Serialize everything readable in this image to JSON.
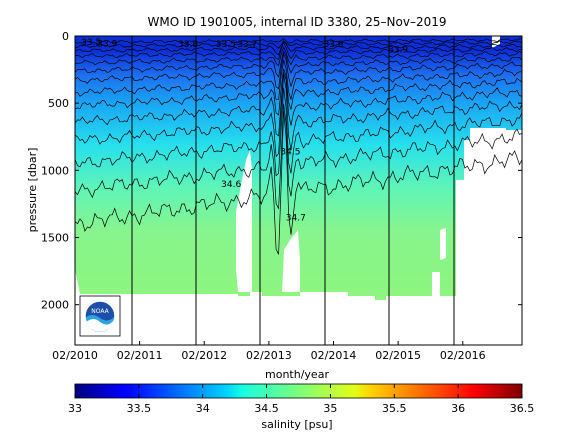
{
  "chart_data": {
    "type": "heatmap",
    "title": "WMO ID 1901005, internal ID 3380, 25–Nov–2019",
    "xlabel": "month/year",
    "ylabel": "pressure [dbar]",
    "x_ticks": [
      "02/2010",
      "02/2011",
      "02/2012",
      "02/2013",
      "02/2014",
      "02/2015",
      "02/2016"
    ],
    "x_range": [
      "02/2010",
      "12/2016"
    ],
    "y_ticks": [
      0,
      500,
      1000,
      1500,
      2000
    ],
    "ylim": [
      0,
      2300
    ],
    "y_reversed": true,
    "colorbar": {
      "label": "salinity [psu]",
      "ticks": [
        "33",
        "33.5",
        "34",
        "34.5",
        "35",
        "35.5",
        "36",
        "36.5"
      ],
      "range": [
        33,
        36.5
      ],
      "colormap": "jet"
    },
    "contour_labels": [
      {
        "text": "33.5",
        "x": "05/2010",
        "y": 45
      },
      {
        "text": "33.9",
        "x": "08/2010",
        "y": 55
      },
      {
        "text": "33.8",
        "x": "11/2011",
        "y": 60
      },
      {
        "text": "33.5",
        "x": "06/2012",
        "y": 60
      },
      {
        "text": "33.7",
        "x": "10/2012",
        "y": 60
      },
      {
        "text": "33.6",
        "x": "02/2014",
        "y": 60
      },
      {
        "text": "33.9",
        "x": "02/2015",
        "y": 100
      },
      {
        "text": "34.5",
        "x": "06/2013",
        "y": 860
      },
      {
        "text": "34.6",
        "x": "07/2012",
        "y": 1100
      },
      {
        "text": "34.7",
        "x": "07/2013",
        "y": 1350
      }
    ],
    "approx_deepest_profile_dbar": 1950,
    "logo": "NOAA"
  }
}
